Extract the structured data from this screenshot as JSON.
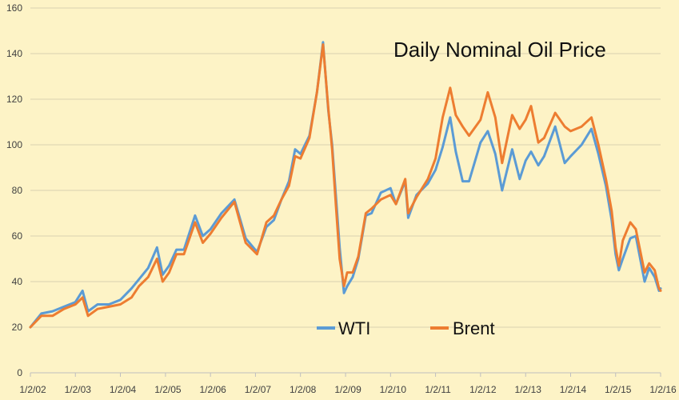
{
  "colors": {
    "background": "#fdf3c6",
    "grid": "#d9d0b0",
    "axis": "#bfbfbf",
    "wti": "#5b9bd5",
    "brent": "#ed7d31"
  },
  "chart_data": {
    "type": "line",
    "title": "Daily Nominal Oil Price",
    "xlabel": "",
    "ylabel": "",
    "ylim": [
      0,
      160
    ],
    "yticks": [
      0,
      20,
      40,
      60,
      80,
      100,
      120,
      140,
      160
    ],
    "x_tick_labels": [
      "1/2/02",
      "1/2/03",
      "1/2/04",
      "1/2/05",
      "1/2/06",
      "1/2/07",
      "1/2/08",
      "1/2/09",
      "1/2/10",
      "1/2/11",
      "1/2/12",
      "1/2/13",
      "1/2/14",
      "1/2/15",
      "1/2/16"
    ],
    "grid": true,
    "legend": "bottom-center",
    "series": [
      {
        "name": "WTI",
        "x": [
          "2002-01-02",
          "2002-04-01",
          "2002-07-01",
          "2002-10-01",
          "2003-01-02",
          "2003-03-01",
          "2003-04-15",
          "2003-07-01",
          "2003-10-01",
          "2004-01-02",
          "2004-04-01",
          "2004-06-01",
          "2004-08-15",
          "2004-10-25",
          "2004-12-10",
          "2005-02-01",
          "2005-04-01",
          "2005-06-01",
          "2005-08-30",
          "2005-11-01",
          "2006-01-02",
          "2006-04-01",
          "2006-07-15",
          "2006-10-15",
          "2007-01-15",
          "2007-04-01",
          "2007-06-01",
          "2007-08-01",
          "2007-10-01",
          "2007-11-20",
          "2008-01-02",
          "2008-03-15",
          "2008-05-15",
          "2008-07-03",
          "2008-08-15",
          "2008-09-15",
          "2008-10-15",
          "2008-11-15",
          "2008-12-20",
          "2009-01-15",
          "2009-03-01",
          "2009-04-15",
          "2009-06-15",
          "2009-08-01",
          "2009-10-15",
          "2010-01-02",
          "2010-02-15",
          "2010-05-01",
          "2010-05-25",
          "2010-08-01",
          "2010-11-01",
          "2011-01-02",
          "2011-03-01",
          "2011-05-01",
          "2011-06-15",
          "2011-08-10",
          "2011-10-01",
          "2012-01-02",
          "2012-03-01",
          "2012-05-01",
          "2012-06-25",
          "2012-09-15",
          "2012-11-15",
          "2013-01-02",
          "2013-02-15",
          "2013-04-15",
          "2013-06-01",
          "2013-08-30",
          "2013-11-15",
          "2014-01-02",
          "2014-04-01",
          "2014-06-20",
          "2014-08-15",
          "2014-10-15",
          "2014-12-01",
          "2015-01-02",
          "2015-01-28",
          "2015-03-01",
          "2015-05-01",
          "2015-06-15",
          "2015-08-25",
          "2015-10-01",
          "2015-11-15",
          "2015-12-20",
          "2016-01-02"
        ],
        "values": [
          20,
          26,
          27,
          29,
          31,
          36,
          27,
          30,
          30,
          32,
          37,
          41,
          46,
          55,
          43,
          47,
          54,
          54,
          69,
          60,
          63,
          70,
          76,
          59,
          53,
          64,
          67,
          76,
          84,
          98,
          96,
          104,
          123,
          145,
          115,
          100,
          78,
          55,
          35,
          38,
          42,
          50,
          69,
          70,
          79,
          81,
          74,
          84,
          68,
          78,
          83,
          89,
          99,
          112,
          97,
          84,
          84,
          101,
          106,
          96,
          80,
          98,
          85,
          93,
          97,
          91,
          95,
          108,
          92,
          95,
          100,
          107,
          96,
          82,
          67,
          52,
          45,
          50,
          59,
          60,
          40,
          46,
          42,
          36,
          37
        ]
      },
      {
        "name": "Brent",
        "x": [
          "2002-01-02",
          "2002-04-01",
          "2002-07-01",
          "2002-10-01",
          "2003-01-02",
          "2003-03-01",
          "2003-04-15",
          "2003-07-01",
          "2003-10-01",
          "2004-01-02",
          "2004-04-01",
          "2004-06-01",
          "2004-08-15",
          "2004-10-25",
          "2004-12-10",
          "2005-02-01",
          "2005-04-01",
          "2005-06-01",
          "2005-08-30",
          "2005-11-01",
          "2006-01-02",
          "2006-04-01",
          "2006-07-15",
          "2006-10-15",
          "2007-01-15",
          "2007-04-01",
          "2007-06-01",
          "2007-08-01",
          "2007-10-01",
          "2007-11-20",
          "2008-01-02",
          "2008-03-15",
          "2008-05-15",
          "2008-07-03",
          "2008-08-15",
          "2008-09-15",
          "2008-10-15",
          "2008-11-15",
          "2008-12-20",
          "2009-01-15",
          "2009-03-01",
          "2009-04-15",
          "2009-06-15",
          "2009-08-01",
          "2009-10-15",
          "2010-01-02",
          "2010-02-15",
          "2010-05-01",
          "2010-05-25",
          "2010-08-01",
          "2010-11-01",
          "2011-01-02",
          "2011-03-01",
          "2011-05-01",
          "2011-06-15",
          "2011-08-10",
          "2011-10-01",
          "2012-01-02",
          "2012-03-01",
          "2012-05-01",
          "2012-06-25",
          "2012-09-15",
          "2012-11-15",
          "2013-01-02",
          "2013-02-15",
          "2013-04-15",
          "2013-06-01",
          "2013-08-30",
          "2013-11-15",
          "2014-01-02",
          "2014-04-01",
          "2014-06-20",
          "2014-08-15",
          "2014-10-15",
          "2014-12-01",
          "2015-01-02",
          "2015-01-28",
          "2015-03-01",
          "2015-05-01",
          "2015-06-15",
          "2015-08-25",
          "2015-10-01",
          "2015-11-15",
          "2015-12-20",
          "2016-01-02"
        ],
        "values": [
          20,
          25,
          25,
          28,
          30,
          33,
          25,
          28,
          29,
          30,
          33,
          38,
          42,
          50,
          40,
          44,
          52,
          52,
          66,
          57,
          61,
          68,
          75,
          57,
          52,
          66,
          69,
          76,
          82,
          95,
          94,
          103,
          123,
          144,
          116,
          98,
          74,
          50,
          38,
          44,
          44,
          51,
          70,
          72,
          76,
          78,
          74,
          85,
          70,
          77,
          85,
          94,
          112,
          125,
          113,
          108,
          104,
          111,
          123,
          112,
          92,
          113,
          107,
          111,
          117,
          101,
          103,
          114,
          108,
          106,
          108,
          112,
          100,
          85,
          71,
          55,
          47,
          58,
          66,
          63,
          44,
          48,
          45,
          37,
          36
        ]
      }
    ]
  }
}
